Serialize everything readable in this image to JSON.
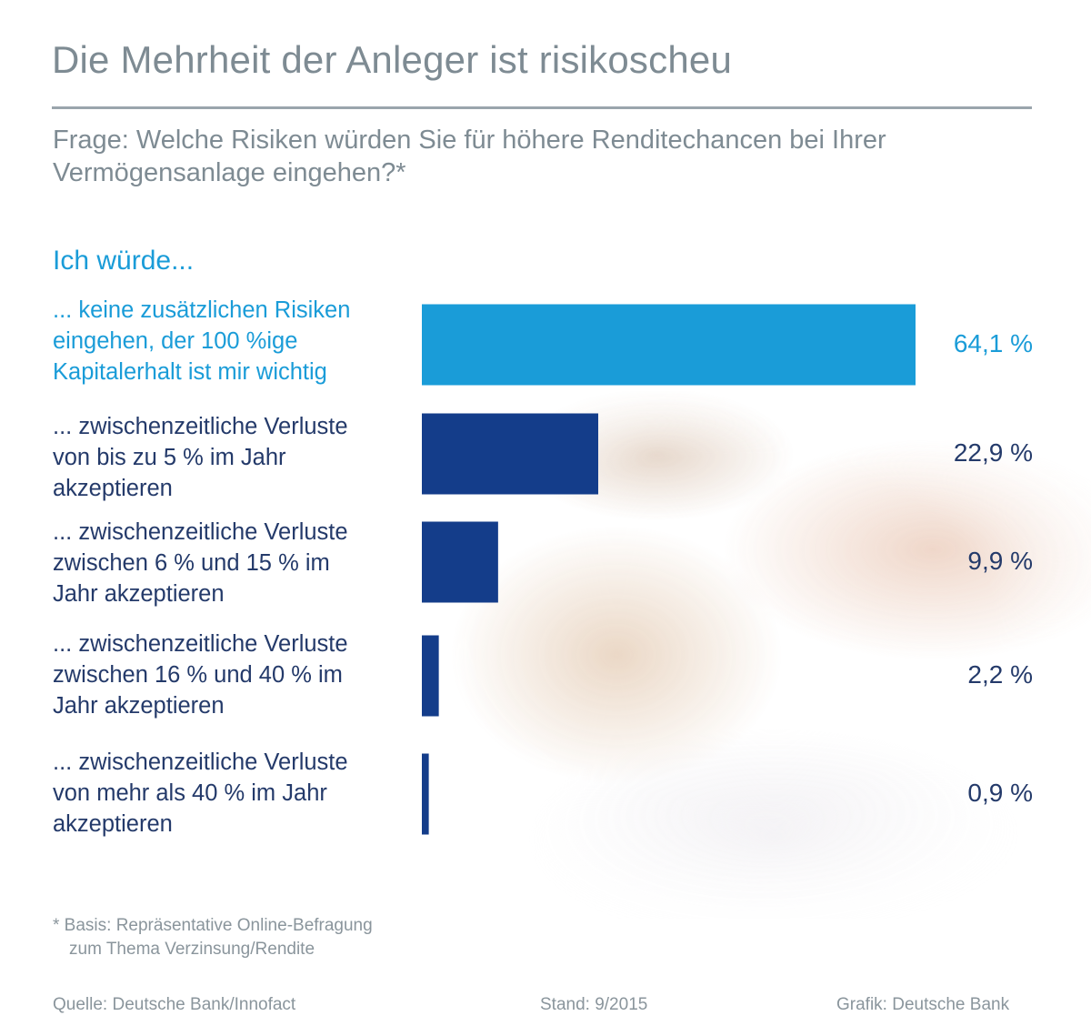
{
  "title": "Die Mehrheit der Anleger ist risikoscheu",
  "subtitle": "Frage: Welche Risiken würden Sie für höhere Renditechancen bei Ihrer Vermögensanlage eingehen?*",
  "lead": "Ich würde...",
  "colors": {
    "highlight": "#1a9cd8",
    "bar": "#143d8a",
    "text": "#243a6a",
    "grey": "#7e8b93"
  },
  "chart_data": {
    "type": "bar",
    "orientation": "horizontal",
    "unit": "%",
    "xlim": [
      0,
      64.1
    ],
    "categories": [
      "... keine zusätzlichen Risiken eingehen, der 100 %ige Kapitalerhalt ist mir wichtig",
      "... zwischenzeitliche Verluste von bis zu 5 % im Jahr akzeptieren",
      "... zwischenzeitliche Verluste zwischen 6 % und 15 % im Jahr akzeptieren",
      "... zwischenzeitliche Verluste zwischen 16 % und 40 % im Jahr akzeptieren",
      "... zwischenzeitliche Verluste von mehr als 40 % im Jahr akzeptieren"
    ],
    "values": [
      64.1,
      22.9,
      9.9,
      2.2,
      0.9
    ],
    "value_labels": [
      "64,1 %",
      "22,9 %",
      "9,9 %",
      "2,2 %",
      "0,9 %"
    ],
    "highlighted_index": 0
  },
  "footnote": {
    "line1": "* Basis: Repräsentative Online-Befragung",
    "line2": "zum Thema Verzinsung/Rendite"
  },
  "footer": {
    "source": "Quelle: Deutsche Bank/Innofact",
    "date": "Stand: 9/2015",
    "credit": "Grafik: Deutsche Bank"
  }
}
